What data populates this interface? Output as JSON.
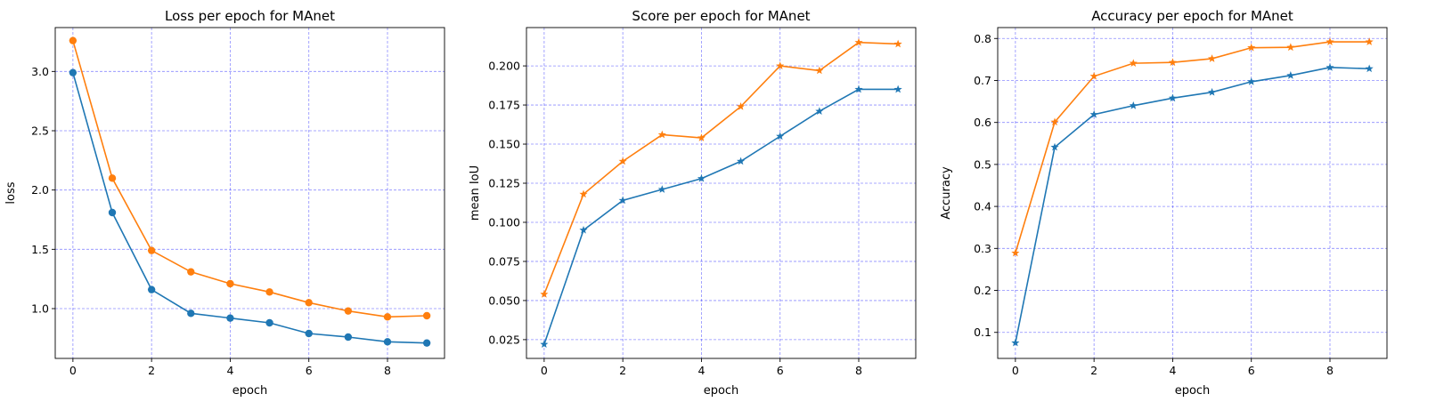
{
  "chart_data": [
    {
      "type": "line",
      "title": "Loss per epoch for MAnet",
      "xlabel": "epoch",
      "ylabel": "loss",
      "marker": "circle",
      "grid": true,
      "xlim": [
        -0.45,
        9.45
      ],
      "ylim": [
        0.58,
        3.37
      ],
      "xticks": [
        0,
        2,
        4,
        6,
        8
      ],
      "yticks": [
        1.0,
        1.5,
        2.0,
        2.5,
        3.0
      ],
      "ytick_labels": [
        "1.0",
        "1.5",
        "2.0",
        "2.5",
        "3.0"
      ],
      "x": [
        0,
        1,
        2,
        3,
        4,
        5,
        6,
        7,
        8,
        9
      ],
      "series": [
        {
          "color": "#1f77b4",
          "values": [
            2.99,
            1.81,
            1.16,
            0.96,
            0.92,
            0.88,
            0.79,
            0.76,
            0.72,
            0.71
          ]
        },
        {
          "color": "#ff7f0e",
          "values": [
            3.26,
            2.1,
            1.49,
            1.31,
            1.21,
            1.14,
            1.05,
            0.98,
            0.93,
            0.94
          ]
        }
      ]
    },
    {
      "type": "line",
      "title": "Score per epoch for MAnet",
      "xlabel": "epoch",
      "ylabel": "mean IoU",
      "marker": "star",
      "grid": true,
      "xlim": [
        -0.45,
        9.45
      ],
      "ylim": [
        0.013,
        0.2245
      ],
      "xticks": [
        0,
        2,
        4,
        6,
        8
      ],
      "yticks": [
        0.025,
        0.05,
        0.075,
        0.1,
        0.125,
        0.15,
        0.175,
        0.2
      ],
      "ytick_labels": [
        "0.025",
        "0.050",
        "0.075",
        "0.100",
        "0.125",
        "0.150",
        "0.175",
        "0.200"
      ],
      "x": [
        0,
        1,
        2,
        3,
        4,
        5,
        6,
        7,
        8,
        9
      ],
      "series": [
        {
          "color": "#1f77b4",
          "values": [
            0.022,
            0.095,
            0.114,
            0.121,
            0.128,
            0.139,
            0.155,
            0.171,
            0.185,
            0.185
          ]
        },
        {
          "color": "#ff7f0e",
          "values": [
            0.054,
            0.118,
            0.139,
            0.156,
            0.154,
            0.174,
            0.2,
            0.197,
            0.215,
            0.214
          ]
        }
      ]
    },
    {
      "type": "line",
      "title": "Accuracy per epoch for MAnet",
      "xlabel": "epoch",
      "ylabel": "Accuracy",
      "marker": "star",
      "grid": true,
      "xlim": [
        -0.45,
        9.45
      ],
      "ylim": [
        0.038,
        0.826
      ],
      "xticks": [
        0,
        2,
        4,
        6,
        8
      ],
      "yticks": [
        0.1,
        0.2,
        0.3,
        0.4,
        0.5,
        0.6,
        0.7,
        0.8
      ],
      "ytick_labels": [
        "0.1",
        "0.2",
        "0.3",
        "0.4",
        "0.5",
        "0.6",
        "0.7",
        "0.8"
      ],
      "x": [
        0,
        1,
        2,
        3,
        4,
        5,
        6,
        7,
        8,
        9
      ],
      "series": [
        {
          "color": "#1f77b4",
          "values": [
            0.075,
            0.541,
            0.619,
            0.64,
            0.658,
            0.672,
            0.697,
            0.712,
            0.731,
            0.728
          ]
        },
        {
          "color": "#ff7f0e",
          "values": [
            0.289,
            0.601,
            0.71,
            0.741,
            0.743,
            0.752,
            0.778,
            0.779,
            0.792,
            0.792
          ]
        }
      ]
    }
  ]
}
